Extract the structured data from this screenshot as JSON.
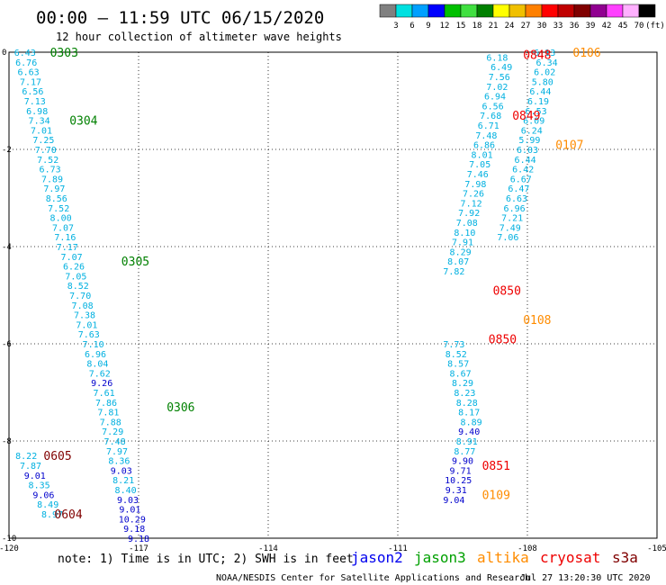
{
  "title": "00:00 – 11:59 UTC 06/15/2020",
  "subtitle": "12 hour collection of altimeter wave heights",
  "footer_note": "note: 1) Time is in UTC; 2) SWH is in feet",
  "footer_credit": "NOAA/NESDIS Center for Satellite Applications and Research",
  "footer_timestamp": "Jul 27 13:20:30 UTC 2020",
  "colorbar": {
    "labels": [
      "3",
      "6",
      "9",
      "12",
      "15",
      "18",
      "21",
      "24",
      "27",
      "30",
      "33",
      "36",
      "39",
      "42",
      "45",
      "70",
      "(ft)"
    ],
    "colors": [
      "#808080",
      "#00e0e0",
      "#00a0ff",
      "#0000ff",
      "#00c000",
      "#40e040",
      "#008000",
      "#ffff00",
      "#f0c000",
      "#ff8000",
      "#ff0000",
      "#c00000",
      "#800000",
      "#900090",
      "#ff40ff",
      "#ffb0ff",
      "#000000"
    ]
  },
  "legend": [
    {
      "name": "jason2",
      "color": "#0000ee"
    },
    {
      "name": "jason3",
      "color": "#00a000"
    },
    {
      "name": "altika",
      "color": "#ff8c00"
    },
    {
      "name": "cryosat",
      "color": "#ee0000"
    },
    {
      "name": "s3a",
      "color": "#800000"
    }
  ],
  "chart_data": {
    "type": "scatter",
    "xlim": [
      -120,
      -105
    ],
    "ylim": [
      -10,
      0
    ],
    "x_ticks": [
      "-120",
      "-117",
      "-114",
      "-111",
      "-108",
      "-105"
    ],
    "y_ticks": [
      "0",
      "-2",
      "-4",
      "-6",
      "-8",
      "-10"
    ],
    "grid": true,
    "series": [
      {
        "name": "jason3 track A",
        "x": [
          -119.63,
          -119.6,
          -119.55,
          -119.5,
          -119.45,
          -119.4,
          -119.35,
          -119.3,
          -119.25,
          -119.2,
          -119.15,
          -119.1,
          -119.05,
          -119.0,
          -118.95,
          -118.9,
          -118.85,
          -118.8,
          -118.75,
          -118.7,
          -118.65,
          -118.55,
          -118.5,
          -118.45,
          -118.4,
          -118.35,
          -118.3,
          -118.25,
          -118.2,
          -118.15,
          -118.05,
          -118.0,
          -117.95,
          -117.9,
          -117.85,
          -117.8,
          -117.75,
          -117.7,
          -117.65,
          -117.6,
          -117.55,
          -117.5,
          -117.45,
          -117.4,
          -117.35,
          -117.3,
          -117.25,
          -117.2,
          -117.15,
          -117.1,
          -117.0
        ],
        "y": [
          0.0,
          -0.2,
          -0.4,
          -0.6,
          -0.8,
          -1.0,
          -1.2,
          -1.4,
          -1.6,
          -1.8,
          -2.0,
          -2.2,
          -2.4,
          -2.6,
          -2.8,
          -3.0,
          -3.2,
          -3.4,
          -3.6,
          -3.8,
          -4.0,
          -4.2,
          -4.4,
          -4.6,
          -4.8,
          -5.0,
          -5.2,
          -5.4,
          -5.6,
          -5.8,
          -6.0,
          -6.2,
          -6.4,
          -6.6,
          -6.8,
          -7.0,
          -7.2,
          -7.4,
          -7.6,
          -7.8,
          -8.0,
          -8.2,
          -8.4,
          -8.6,
          -8.8,
          -9.0,
          -9.2,
          -9.4,
          -9.6,
          -9.8,
          -10.0
        ],
        "values": [
          "6.43",
          "6.76",
          "6.63",
          "7.17",
          "6.56",
          "7.13",
          "6.98",
          "7.34",
          "7.01",
          "7.25",
          "7.70",
          "7.52",
          "6.73",
          "7.89",
          "7.97",
          "8.56",
          "7.52",
          "8.00",
          "7.07",
          "7.16",
          "7.17",
          "7.07",
          "6.26",
          "7.05",
          "8.52",
          "7.70",
          "7.08",
          "7.38",
          "7.01",
          "7.63",
          "7.10",
          "6.96",
          "8.04",
          "7.62",
          "9.26",
          "7.61",
          "7.86",
          "7.81",
          "7.88",
          "7.29",
          "7.48",
          "7.97",
          "8.36",
          "9.03",
          "8.21",
          "8.40",
          "9.03",
          "9.01",
          "10.29",
          "9.18",
          "9.18"
        ]
      },
      {
        "name": "s3a track",
        "x": [
          -119.6,
          -119.5,
          -119.4,
          -119.3,
          -119.2,
          -119.1,
          -119.0
        ],
        "y": [
          -8.3,
          -8.5,
          -8.7,
          -8.9,
          -9.1,
          -9.3,
          -9.5
        ],
        "values": [
          "8.22",
          "7.87",
          "9.01",
          "8.35",
          "9.06",
          "8.49",
          "8.97"
        ]
      },
      {
        "name": "altimeter track B",
        "x": [
          -108.7,
          -108.6,
          -108.65,
          -108.7,
          -108.75,
          -108.8,
          -108.85,
          -108.9,
          -108.95,
          -109.0,
          -109.05,
          -109.1,
          -109.15,
          -109.2,
          -109.25,
          -109.3,
          -109.35,
          -109.4,
          -109.45,
          -109.5,
          -109.55,
          -109.6,
          -109.7
        ],
        "values": [
          "6.18",
          "6.49",
          "7.56",
          "7.02",
          "6.94",
          "6.56",
          "7.68",
          "6.71",
          "7.48",
          "6.86",
          "8.01",
          "7.05",
          "7.46",
          "7.98",
          "7.26",
          "7.12",
          "7.92",
          "7.08",
          "8.10",
          "7.91",
          "8.29",
          "8.07",
          "7.82"
        ],
        "y": [
          -0.1,
          -0.3,
          -0.5,
          -0.7,
          -0.9,
          -1.1,
          -1.3,
          -1.5,
          -1.7,
          -1.9,
          -2.1,
          -2.3,
          -2.5,
          -2.7,
          -2.9,
          -3.1,
          -3.3,
          -3.5,
          -3.7,
          -3.9,
          -4.1,
          -4.3,
          -4.5
        ]
      },
      {
        "name": "altimeter track C",
        "x": [
          -107.6,
          -107.55,
          -107.6,
          -107.65,
          -107.7,
          -107.75,
          -107.8,
          -107.85,
          -107.9,
          -107.95,
          -108.0,
          -108.05,
          -108.1,
          -108.15,
          -108.2,
          -108.25,
          -108.3,
          -108.35,
          -108.4,
          -108.45
        ],
        "values": [
          "6.13",
          "6.34",
          "6.02",
          "5.80",
          "6.44",
          "6.19",
          "6.53",
          "6.09",
          "6.24",
          "5.99",
          "6.03",
          "6.44",
          "6.42",
          "6.67",
          "6.47",
          "6.63",
          "6.96",
          "7.21",
          "7.49",
          "7.06"
        ],
        "y": [
          0.0,
          -0.2,
          -0.4,
          -0.6,
          -0.8,
          -1.0,
          -1.2,
          -1.4,
          -1.6,
          -1.8,
          -2.0,
          -2.2,
          -2.4,
          -2.6,
          -2.8,
          -3.0,
          -3.2,
          -3.4,
          -3.6,
          -3.8
        ]
      },
      {
        "name": "altimeter track D",
        "x": [
          -109.7,
          -109.65,
          -109.6,
          -109.55,
          -109.5,
          -109.45,
          -109.4,
          -109.35,
          -109.3,
          -109.35,
          -109.4,
          -109.45,
          -109.5,
          -109.55,
          -109.6,
          -109.65,
          -109.7
        ],
        "values": [
          "7.73",
          "8.52",
          "8.57",
          "8.67",
          "8.29",
          "8.23",
          "8.28",
          "8.17",
          "8.89",
          "9.40",
          "8.91",
          "8.77",
          "9.90",
          "9.71",
          "10.25",
          "9.31",
          "9.04"
        ],
        "y": [
          -6.0,
          -6.2,
          -6.4,
          -6.6,
          -6.8,
          -7.0,
          -7.2,
          -7.4,
          -7.6,
          -7.8,
          -8.0,
          -8.2,
          -8.4,
          -8.6,
          -8.8,
          -9.0,
          -9.2
        ]
      }
    ],
    "time_labels": [
      {
        "text": "0303",
        "x": -119.05,
        "y": 0.0,
        "color": "#008000"
      },
      {
        "text": "0304",
        "x": -118.6,
        "y": -1.4,
        "color": "#008000"
      },
      {
        "text": "0305",
        "x": -117.4,
        "y": -4.3,
        "color": "#008000"
      },
      {
        "text": "0306",
        "x": -116.35,
        "y": -7.3,
        "color": "#008000"
      },
      {
        "text": "0605",
        "x": -119.2,
        "y": -8.3,
        "color": "#800000"
      },
      {
        "text": "0604",
        "x": -118.95,
        "y": -9.5,
        "color": "#800000"
      },
      {
        "text": "0848",
        "x": -108.1,
        "y": -0.05,
        "color": "#ee0000"
      },
      {
        "text": "0849",
        "x": -108.35,
        "y": -1.3,
        "color": "#ee0000"
      },
      {
        "text": "0850",
        "x": -108.8,
        "y": -4.9,
        "color": "#ee0000"
      },
      {
        "text": "0850",
        "x": -108.9,
        "y": -5.9,
        "color": "#ee0000"
      },
      {
        "text": "0851",
        "x": -109.05,
        "y": -8.5,
        "color": "#ee0000"
      },
      {
        "text": "0106",
        "x": -106.95,
        "y": 0.0,
        "color": "#ff8c00"
      },
      {
        "text": "0107",
        "x": -107.35,
        "y": -1.9,
        "color": "#ff8c00"
      },
      {
        "text": "0108",
        "x": -108.1,
        "y": -5.5,
        "color": "#ff8c00"
      },
      {
        "text": "0109",
        "x": -109.05,
        "y": -9.1,
        "color": "#ff8c00"
      }
    ]
  }
}
